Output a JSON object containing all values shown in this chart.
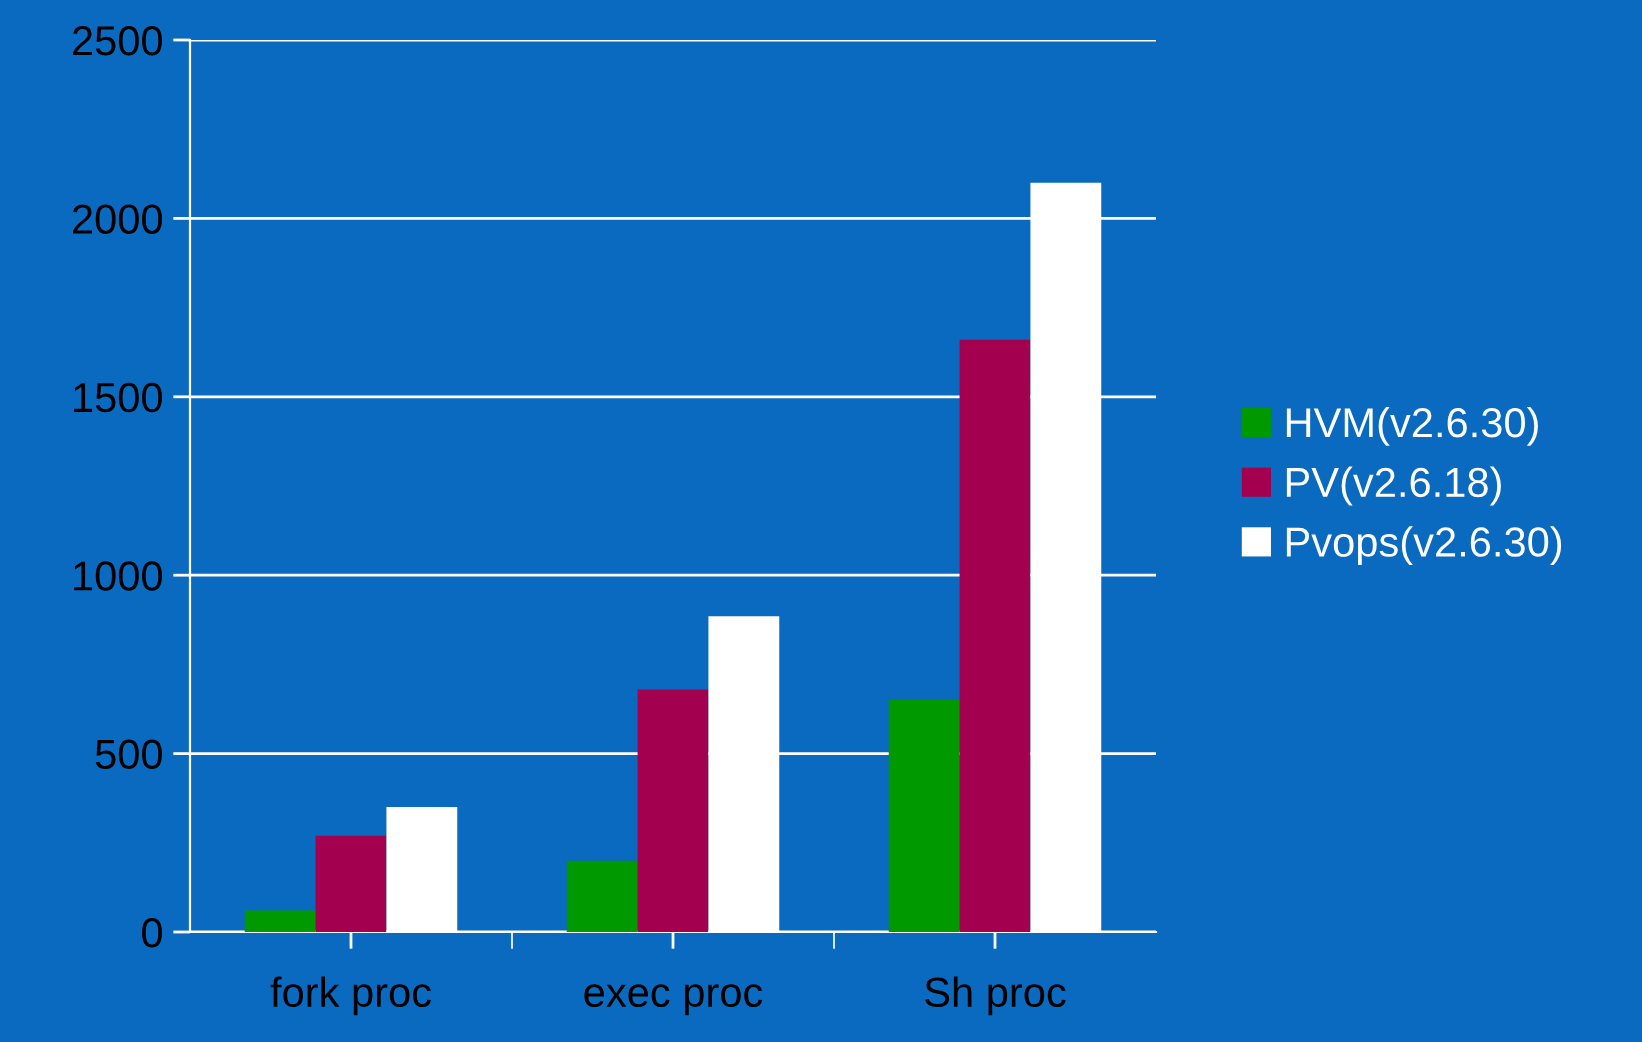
{
  "chart_data": {
    "type": "bar",
    "categories": [
      "fork proc",
      "exec proc",
      "Sh proc"
    ],
    "series": [
      {
        "name": "HVM(v2.6.30)",
        "color": "#009900",
        "values": [
          60,
          200,
          650
        ]
      },
      {
        "name": "PV(v2.6.18)",
        "color": "#a3004f",
        "values": [
          270,
          680,
          1660
        ]
      },
      {
        "name": "Pvops(v2.6.30)",
        "color": "#ffffff",
        "values": [
          350,
          885,
          2100
        ]
      }
    ],
    "ylim": [
      0,
      2500
    ],
    "yticks": [
      0,
      500,
      1000,
      1500,
      2000,
      2500
    ],
    "grid": "y",
    "legend": "right"
  }
}
